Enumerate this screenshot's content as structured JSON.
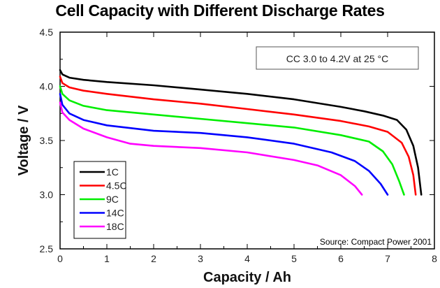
{
  "chart_data": {
    "type": "line",
    "title": "Cell Capacity with Different Discharge Rates",
    "xlabel": "Capacity / Ah",
    "ylabel": "Voltage / V",
    "xlim": [
      0,
      8
    ],
    "ylim": [
      2.5,
      4.5
    ],
    "x_ticks": [
      "0",
      "1",
      "2",
      "3",
      "4",
      "5",
      "6",
      "7",
      "8"
    ],
    "y_ticks": [
      "2.5",
      "3.0",
      "3.5",
      "4.0",
      "4.5"
    ],
    "grid": false,
    "legend_position": "bottom-left",
    "annotations": {
      "condition": "CC 3.0 to 4.2V at 25 °C",
      "source": "Source: Compact Power 2001"
    },
    "series": [
      {
        "name": "1C",
        "color": "#000000",
        "points": [
          [
            0,
            4.15
          ],
          [
            0.05,
            4.11
          ],
          [
            0.2,
            4.08
          ],
          [
            0.5,
            4.06
          ],
          [
            1,
            4.04
          ],
          [
            2,
            4.01
          ],
          [
            3,
            3.97
          ],
          [
            4,
            3.93
          ],
          [
            5,
            3.88
          ],
          [
            6,
            3.81
          ],
          [
            6.5,
            3.77
          ],
          [
            6.9,
            3.73
          ],
          [
            7.2,
            3.69
          ],
          [
            7.4,
            3.6
          ],
          [
            7.55,
            3.45
          ],
          [
            7.65,
            3.25
          ],
          [
            7.72,
            3.0
          ]
        ]
      },
      {
        "name": "4.5C",
        "color": "#ff0000",
        "points": [
          [
            0,
            4.09
          ],
          [
            0.05,
            4.03
          ],
          [
            0.2,
            3.99
          ],
          [
            0.5,
            3.96
          ],
          [
            1,
            3.93
          ],
          [
            2,
            3.88
          ],
          [
            3,
            3.84
          ],
          [
            4,
            3.79
          ],
          [
            5,
            3.74
          ],
          [
            6,
            3.68
          ],
          [
            6.6,
            3.63
          ],
          [
            7.0,
            3.58
          ],
          [
            7.3,
            3.48
          ],
          [
            7.45,
            3.35
          ],
          [
            7.55,
            3.18
          ],
          [
            7.6,
            3.0
          ]
        ]
      },
      {
        "name": "9C",
        "color": "#00ee00",
        "points": [
          [
            0,
            4.0
          ],
          [
            0.05,
            3.93
          ],
          [
            0.2,
            3.87
          ],
          [
            0.5,
            3.82
          ],
          [
            1,
            3.78
          ],
          [
            2,
            3.74
          ],
          [
            3,
            3.7
          ],
          [
            4,
            3.66
          ],
          [
            5,
            3.62
          ],
          [
            6,
            3.55
          ],
          [
            6.6,
            3.49
          ],
          [
            6.9,
            3.4
          ],
          [
            7.1,
            3.28
          ],
          [
            7.25,
            3.12
          ],
          [
            7.35,
            3.0
          ]
        ]
      },
      {
        "name": "14C",
        "color": "#0000ff",
        "points": [
          [
            0,
            3.93
          ],
          [
            0.05,
            3.83
          ],
          [
            0.2,
            3.75
          ],
          [
            0.5,
            3.69
          ],
          [
            1,
            3.64
          ],
          [
            2,
            3.59
          ],
          [
            3,
            3.57
          ],
          [
            4,
            3.53
          ],
          [
            5,
            3.47
          ],
          [
            5.8,
            3.39
          ],
          [
            6.3,
            3.31
          ],
          [
            6.6,
            3.22
          ],
          [
            6.85,
            3.1
          ],
          [
            7.0,
            3.0
          ]
        ]
      },
      {
        "name": "18C",
        "color": "#ff00ff",
        "points": [
          [
            0,
            3.85
          ],
          [
            0.05,
            3.76
          ],
          [
            0.2,
            3.69
          ],
          [
            0.5,
            3.61
          ],
          [
            1,
            3.53
          ],
          [
            1.5,
            3.47
          ],
          [
            2,
            3.45
          ],
          [
            3,
            3.43
          ],
          [
            4,
            3.39
          ],
          [
            5,
            3.32
          ],
          [
            5.5,
            3.27
          ],
          [
            6.0,
            3.18
          ],
          [
            6.3,
            3.08
          ],
          [
            6.45,
            3.0
          ]
        ]
      }
    ]
  }
}
